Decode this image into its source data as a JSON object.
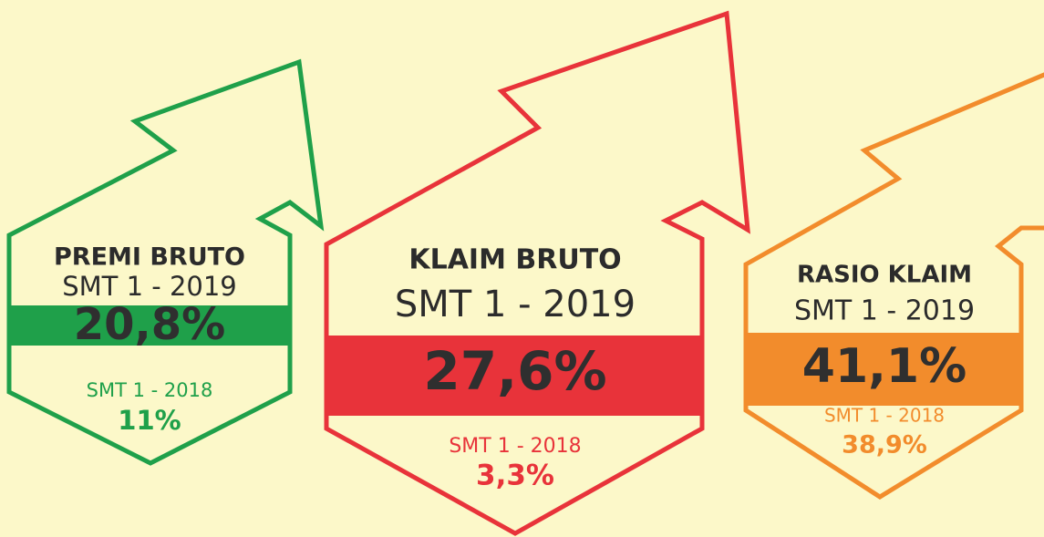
{
  "cards": [
    {
      "title": "PREMI BRUTO",
      "period": "SMT 1 - 2019",
      "value": "20,8%",
      "prev_period": "SMT 1 - 2018",
      "prev_value": "11%"
    },
    {
      "title": "KLAIM  BRUTO",
      "period": "SMT 1 - 2019",
      "value": "27,6%",
      "prev_period": "SMT 1 - 2018",
      "prev_value": "3,3%"
    },
    {
      "title": "RASIO KLAIM",
      "period": "SMT 1 - 2019",
      "value": "41,1%",
      "prev_period": "SMT 1 - 2018",
      "prev_value": "38,9%"
    }
  ]
}
